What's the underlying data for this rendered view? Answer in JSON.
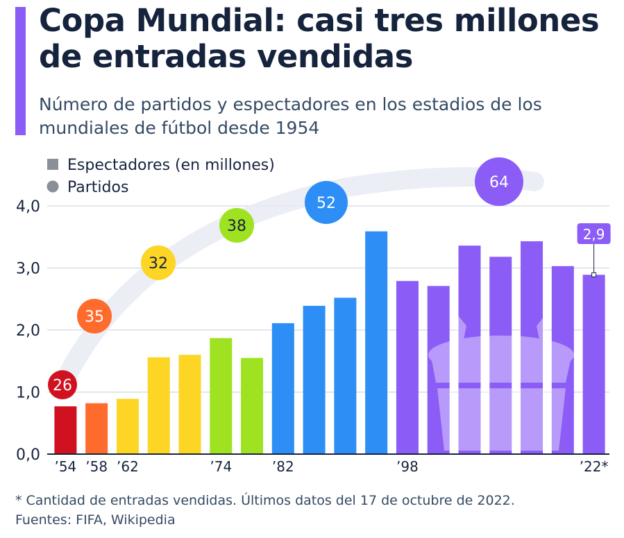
{
  "title": "Copa Mundial: casi tres millones de entradas vendidas",
  "subtitle": "Número de partidos y espectadores en los estadios de los mundiales de fútbol desde 1954",
  "footnote": "* Cantidad de entradas vendidas. Últimos datos del 17 de octubre de 2022.",
  "sources": "Fuentes: FIFA, Wikipedia",
  "colors": {
    "accent": "#8b5cf6",
    "red": "#d0111f",
    "orange": "#ff6b2c",
    "yellow": "#fcd525",
    "green": "#9fe222",
    "blue": "#2d8ef5",
    "purple": "#8b5cf6"
  },
  "chart_data": {
    "type": "bar",
    "legend": [
      {
        "label": "Espectadores (en millones)",
        "marker": "square"
      },
      {
        "label": "Partidos",
        "marker": "circle"
      }
    ],
    "legend_position": "top-left",
    "y_ticks": [
      "0,0",
      "1,0",
      "2,0",
      "3,0",
      "4,0"
    ],
    "ylim": [
      0,
      4.0
    ],
    "grid": true,
    "categories": [
      "1954",
      "1958",
      "1962",
      "1966",
      "1970",
      "1974",
      "1978",
      "1982",
      "1986",
      "1990",
      "1994",
      "1998",
      "2002",
      "2006",
      "2010",
      "2014",
      "2018",
      "2022"
    ],
    "x_tick_labels": [
      "’54",
      "’58",
      "’62",
      "",
      "",
      "’74",
      "",
      "’82",
      "",
      "",
      "",
      "’98",
      "",
      "",
      "",
      "",
      "",
      "’22*"
    ],
    "series": [
      {
        "name": "Espectadores (en millones)",
        "values": [
          0.77,
          0.82,
          0.89,
          1.56,
          1.6,
          1.87,
          1.55,
          2.11,
          2.39,
          2.52,
          3.59,
          2.79,
          2.71,
          3.36,
          3.18,
          3.43,
          3.03,
          2.89
        ],
        "colors": [
          "#d0111f",
          "#ff6b2c",
          "#fcd525",
          "#fcd525",
          "#fcd525",
          "#9fe222",
          "#9fe222",
          "#2d8ef5",
          "#2d8ef5",
          "#2d8ef5",
          "#2d8ef5",
          "#8b5cf6",
          "#8b5cf6",
          "#8b5cf6",
          "#8b5cf6",
          "#8b5cf6",
          "#8b5cf6",
          "#8b5cf6"
        ]
      }
    ],
    "matches": [
      {
        "year": "1954",
        "value": "26",
        "color": "#d0111f"
      },
      {
        "year": "1958",
        "value": "35",
        "color": "#ff6b2c"
      },
      {
        "year": "1966",
        "value": "32",
        "color": "#fcd525"
      },
      {
        "year": "1974",
        "value": "38",
        "color": "#9fe222"
      },
      {
        "year": "1986",
        "value": "52",
        "color": "#2d8ef5"
      },
      {
        "year": "1998",
        "value": "64",
        "color": "#8b5cf6"
      }
    ],
    "annotations": [
      {
        "category": "2022",
        "label": "2,9"
      }
    ]
  }
}
